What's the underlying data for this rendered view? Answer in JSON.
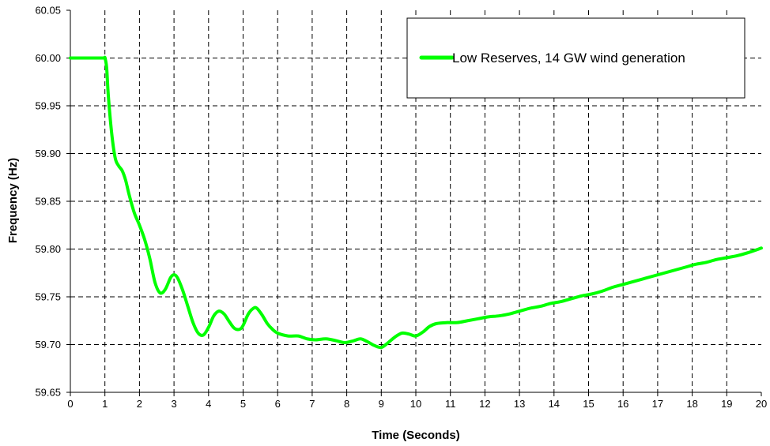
{
  "chart_data": {
    "type": "line",
    "title": "",
    "xlabel": "Time (Seconds)",
    "ylabel": "Frequency (Hz)",
    "xlim": [
      0,
      20
    ],
    "ylim": [
      59.65,
      60.05
    ],
    "x_ticks": [
      "0",
      "1",
      "2",
      "3",
      "4",
      "5",
      "6",
      "7",
      "8",
      "9",
      "10",
      "11",
      "12",
      "13",
      "14",
      "15",
      "16",
      "17",
      "18",
      "19",
      "20"
    ],
    "y_ticks": [
      "59.65",
      "59.70",
      "59.75",
      "59.80",
      "59.85",
      "59.90",
      "59.95",
      "60.00",
      "60.05"
    ],
    "grid": true,
    "legend_position": "top-right",
    "series": [
      {
        "name": "Low Reserves, 14 GW wind generation",
        "color": "#00ff00",
        "points": [
          [
            0,
            60.0
          ],
          [
            0.5,
            60.0
          ],
          [
            0.95,
            60.0
          ],
          [
            1.0,
            60.0
          ],
          [
            1.05,
            59.99
          ],
          [
            1.1,
            59.96
          ],
          [
            1.2,
            59.92
          ],
          [
            1.3,
            59.895
          ],
          [
            1.4,
            59.887
          ],
          [
            1.5,
            59.882
          ],
          [
            1.6,
            59.872
          ],
          [
            1.7,
            59.857
          ],
          [
            1.85,
            59.838
          ],
          [
            2.0,
            59.825
          ],
          [
            2.15,
            59.81
          ],
          [
            2.3,
            59.79
          ],
          [
            2.45,
            59.765
          ],
          [
            2.6,
            59.754
          ],
          [
            2.75,
            59.758
          ],
          [
            2.9,
            59.77
          ],
          [
            3.0,
            59.773
          ],
          [
            3.1,
            59.77
          ],
          [
            3.25,
            59.757
          ],
          [
            3.4,
            59.74
          ],
          [
            3.55,
            59.723
          ],
          [
            3.7,
            59.712
          ],
          [
            3.85,
            59.71
          ],
          [
            4.0,
            59.718
          ],
          [
            4.15,
            59.73
          ],
          [
            4.3,
            59.735
          ],
          [
            4.45,
            59.732
          ],
          [
            4.6,
            59.724
          ],
          [
            4.75,
            59.717
          ],
          [
            4.9,
            59.716
          ],
          [
            5.0,
            59.72
          ],
          [
            5.15,
            59.732
          ],
          [
            5.3,
            59.738
          ],
          [
            5.4,
            59.738
          ],
          [
            5.55,
            59.731
          ],
          [
            5.7,
            59.722
          ],
          [
            5.85,
            59.716
          ],
          [
            6.0,
            59.712
          ],
          [
            6.3,
            59.709
          ],
          [
            6.6,
            59.709
          ],
          [
            6.85,
            59.706
          ],
          [
            7.1,
            59.705
          ],
          [
            7.4,
            59.706
          ],
          [
            7.7,
            59.704
          ],
          [
            7.95,
            59.702
          ],
          [
            8.2,
            59.704
          ],
          [
            8.4,
            59.706
          ],
          [
            8.6,
            59.703
          ],
          [
            8.8,
            59.699
          ],
          [
            9.0,
            59.697
          ],
          [
            9.2,
            59.702
          ],
          [
            9.4,
            59.708
          ],
          [
            9.6,
            59.712
          ],
          [
            9.8,
            59.711
          ],
          [
            10.0,
            59.709
          ],
          [
            10.2,
            59.713
          ],
          [
            10.4,
            59.719
          ],
          [
            10.6,
            59.722
          ],
          [
            10.9,
            59.723
          ],
          [
            11.2,
            59.723
          ],
          [
            11.5,
            59.725
          ],
          [
            11.8,
            59.727
          ],
          [
            12.1,
            59.729
          ],
          [
            12.4,
            59.73
          ],
          [
            12.7,
            59.732
          ],
          [
            13.0,
            59.735
          ],
          [
            13.3,
            59.738
          ],
          [
            13.6,
            59.74
          ],
          [
            13.9,
            59.743
          ],
          [
            14.2,
            59.745
          ],
          [
            14.5,
            59.748
          ],
          [
            14.8,
            59.751
          ],
          [
            15.1,
            59.753
          ],
          [
            15.4,
            59.756
          ],
          [
            15.7,
            59.76
          ],
          [
            16.0,
            59.763
          ],
          [
            16.3,
            59.766
          ],
          [
            16.6,
            59.769
          ],
          [
            16.9,
            59.772
          ],
          [
            17.2,
            59.775
          ],
          [
            17.5,
            59.778
          ],
          [
            17.8,
            59.781
          ],
          [
            18.1,
            59.784
          ],
          [
            18.4,
            59.786
          ],
          [
            18.7,
            59.789
          ],
          [
            19.0,
            59.791
          ],
          [
            19.3,
            59.793
          ],
          [
            19.6,
            59.796
          ],
          [
            20.0,
            59.801
          ]
        ]
      }
    ]
  }
}
